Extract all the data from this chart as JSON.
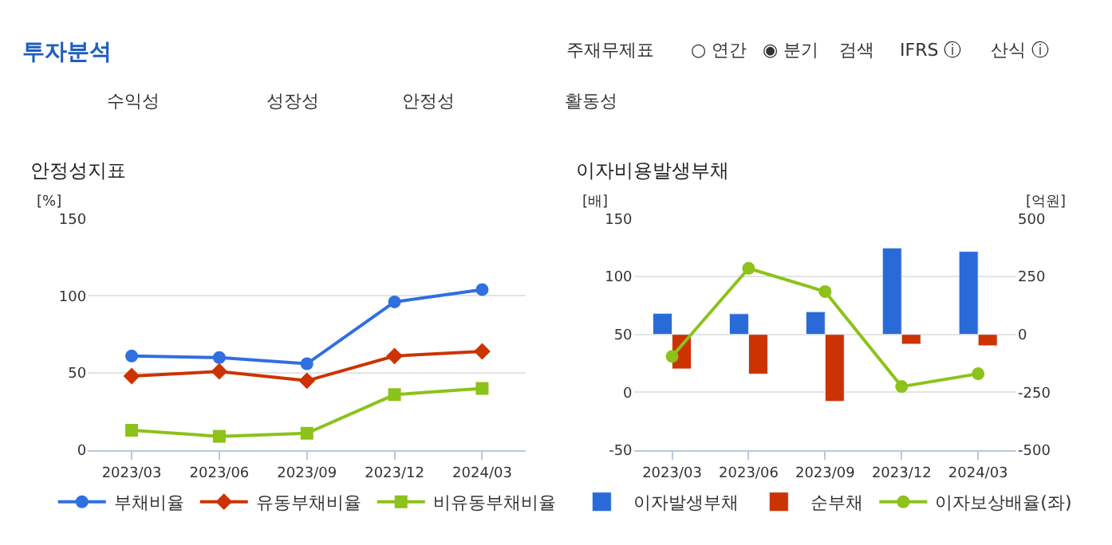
{
  "chart_data": [
    {
      "type": "other",
      "title": "투자분석",
      "annotations": [
        "주재무제표",
        "○ 연간",
        "◉ 분기",
        "검색",
        "IFRS ⓘ",
        "산식 ⓘ",
        "수익성",
        "성장성",
        "안정성",
        "활동성"
      ]
    },
    {
      "type": "line",
      "title": "안정성지표",
      "ylabel": "[%]",
      "categories": [
        "2023/03",
        "2023/06",
        "2023/09",
        "2023/12",
        "2024/03"
      ],
      "ylim": [
        0,
        150
      ],
      "yticks": [
        0,
        50,
        100,
        150
      ],
      "grid": "y",
      "legend": "bottom",
      "series": [
        {
          "name": "부채비율",
          "color": "#2f6fe0",
          "marker": "circle",
          "values": [
            61,
            60,
            56,
            96,
            104
          ]
        },
        {
          "name": "유동부채비율",
          "color": "#cc3300",
          "marker": "diamond",
          "values": [
            48,
            51,
            45,
            61,
            64
          ]
        },
        {
          "name": "비유동부채비율",
          "color": "#8cc21a",
          "marker": "square",
          "values": [
            13,
            9,
            11,
            36,
            40
          ]
        }
      ]
    },
    {
      "type": "bar",
      "title": "이자비용발생부채",
      "ylabel": "[배]",
      "y2label": "[억원]",
      "categories": [
        "2023/03",
        "2023/06",
        "2023/09",
        "2023/12",
        "2024/03"
      ],
      "ylim": [
        -50,
        150
      ],
      "yticks": [
        -50,
        0,
        50,
        100,
        150
      ],
      "y2lim": [
        -500,
        500
      ],
      "y2ticks": [
        -500,
        -250,
        0,
        250,
        500
      ],
      "grid": "y",
      "legend": "bottom",
      "series": [
        {
          "name": "이자발생부채",
          "color": "#2a6ad8",
          "axis": "y2",
          "values": [
            91,
            89,
            98,
            373,
            358
          ]
        },
        {
          "name": "순부채",
          "color": "#cc3300",
          "axis": "y2",
          "values": [
            -149,
            -171,
            -289,
            -42,
            -49
          ]
        },
        {
          "name": "이자보상배율(좌)",
          "type": "line",
          "color": "#8cc21a",
          "marker": "circle",
          "values": [
            31,
            107,
            87,
            5,
            16
          ]
        }
      ]
    }
  ]
}
